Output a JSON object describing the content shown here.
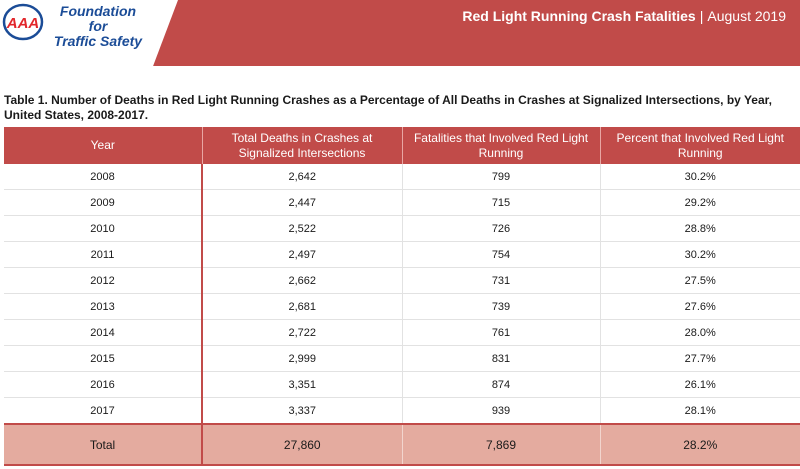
{
  "header": {
    "logo_mark": "AAA",
    "logo_lines": [
      "Foundation",
      "for",
      "Traffic Safety"
    ],
    "title_bold": "Red Light Running Crash Fatalities",
    "separator": "|",
    "title_date": "August 2019"
  },
  "caption": "Table 1. Number of Deaths in Red Light Running Crashes as a Percentage of All Deaths in Crashes at Signalized Intersections, by Year, United States, 2008-2017.",
  "table": {
    "columns": [
      "Year",
      "Total Deaths in Crashes at Signalized Intersections",
      "Fatalities that Involved Red Light Running",
      "Percent that Involved Red Light Running"
    ],
    "rows": [
      [
        "2008",
        "2,642",
        "799",
        "30.2%"
      ],
      [
        "2009",
        "2,447",
        "715",
        "29.2%"
      ],
      [
        "2010",
        "2,522",
        "726",
        "28.8%"
      ],
      [
        "2011",
        "2,497",
        "754",
        "30.2%"
      ],
      [
        "2012",
        "2,662",
        "731",
        "27.5%"
      ],
      [
        "2013",
        "2,681",
        "739",
        "27.6%"
      ],
      [
        "2014",
        "2,722",
        "761",
        "28.0%"
      ],
      [
        "2015",
        "2,999",
        "831",
        "27.7%"
      ],
      [
        "2016",
        "3,351",
        "874",
        "26.1%"
      ],
      [
        "2017",
        "3,337",
        "939",
        "28.1%"
      ]
    ],
    "total": [
      "Total",
      "27,860",
      "7,869",
      "28.2%"
    ]
  },
  "colors": {
    "brand_red": "#c14b49",
    "total_row": "#e4ab9f",
    "logo_blue": "#1b4c97"
  }
}
